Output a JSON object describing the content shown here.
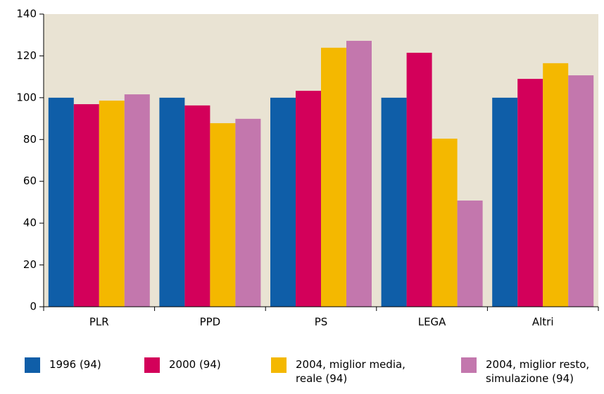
{
  "chart_data": {
    "type": "bar",
    "categories": [
      "PLR",
      "PPD",
      "PS",
      "LEGA",
      "Altri"
    ],
    "series": [
      {
        "name": "1996 (94)",
        "color": "#0f5ea8",
        "values": [
          100,
          100,
          100,
          100,
          100
        ]
      },
      {
        "name": "2000 (94)",
        "color": "#d3005a",
        "values": [
          96.9,
          96.3,
          103.3,
          121.5,
          109
        ]
      },
      {
        "name": "2004, miglior media, reale (94)",
        "color": "#f4b800",
        "values": [
          98.6,
          87.8,
          123.9,
          80.4,
          116.5
        ]
      },
      {
        "name": "2004, miglior resto, simulazione (94)",
        "color": "#c377ad",
        "values": [
          101.6,
          89.9,
          127.2,
          50.8,
          110.7
        ]
      }
    ],
    "ylim": [
      0,
      140
    ],
    "yticks": [
      0,
      20,
      40,
      60,
      80,
      100,
      120,
      140
    ],
    "plot_background": "#e9e3d3"
  }
}
